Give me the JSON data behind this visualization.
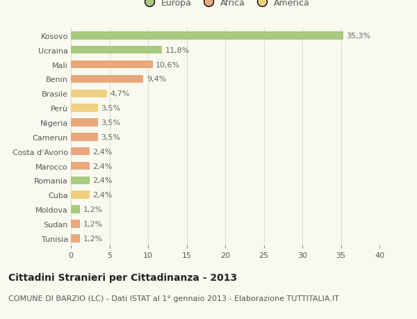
{
  "countries": [
    "Kosovo",
    "Ucraina",
    "Mali",
    "Benin",
    "Brasile",
    "Perù",
    "Nigeria",
    "Camerun",
    "Costa d'Avorio",
    "Marocco",
    "Romania",
    "Cuba",
    "Moldova",
    "Sudan",
    "Tunisia"
  ],
  "values": [
    35.3,
    11.8,
    10.6,
    9.4,
    4.7,
    3.5,
    3.5,
    3.5,
    2.4,
    2.4,
    2.4,
    2.4,
    1.2,
    1.2,
    1.2
  ],
  "labels": [
    "35,3%",
    "11,8%",
    "10,6%",
    "9,4%",
    "4,7%",
    "3,5%",
    "3,5%",
    "3,5%",
    "2,4%",
    "2,4%",
    "2,4%",
    "2,4%",
    "1,2%",
    "1,2%",
    "1,2%"
  ],
  "colors": [
    "#a8c97f",
    "#a8c97f",
    "#e8a87c",
    "#e8a87c",
    "#f0d080",
    "#f0d080",
    "#e8a87c",
    "#e8a87c",
    "#e8a87c",
    "#e8a87c",
    "#a8c97f",
    "#f0d080",
    "#a8c97f",
    "#e8a87c",
    "#e8a87c"
  ],
  "legend": [
    {
      "label": "Europa",
      "color": "#a8c97f"
    },
    {
      "label": "Africa",
      "color": "#e8a87c"
    },
    {
      "label": "America",
      "color": "#f0d080"
    }
  ],
  "xlim": [
    0,
    40
  ],
  "xticks": [
    0,
    5,
    10,
    15,
    20,
    25,
    30,
    35,
    40
  ],
  "title": "Cittadini Stranieri per Cittadinanza - 2013",
  "subtitle": "COMUNE DI BARZIO (LC) - Dati ISTAT al 1° gennaio 2013 - Elaborazione TUTTITALIA.IT",
  "background_color": "#f9f9f0",
  "grid_color": "#ddddcc",
  "bar_height": 0.55,
  "title_fontsize": 10,
  "subtitle_fontsize": 8,
  "tick_fontsize": 8,
  "label_fontsize": 8
}
